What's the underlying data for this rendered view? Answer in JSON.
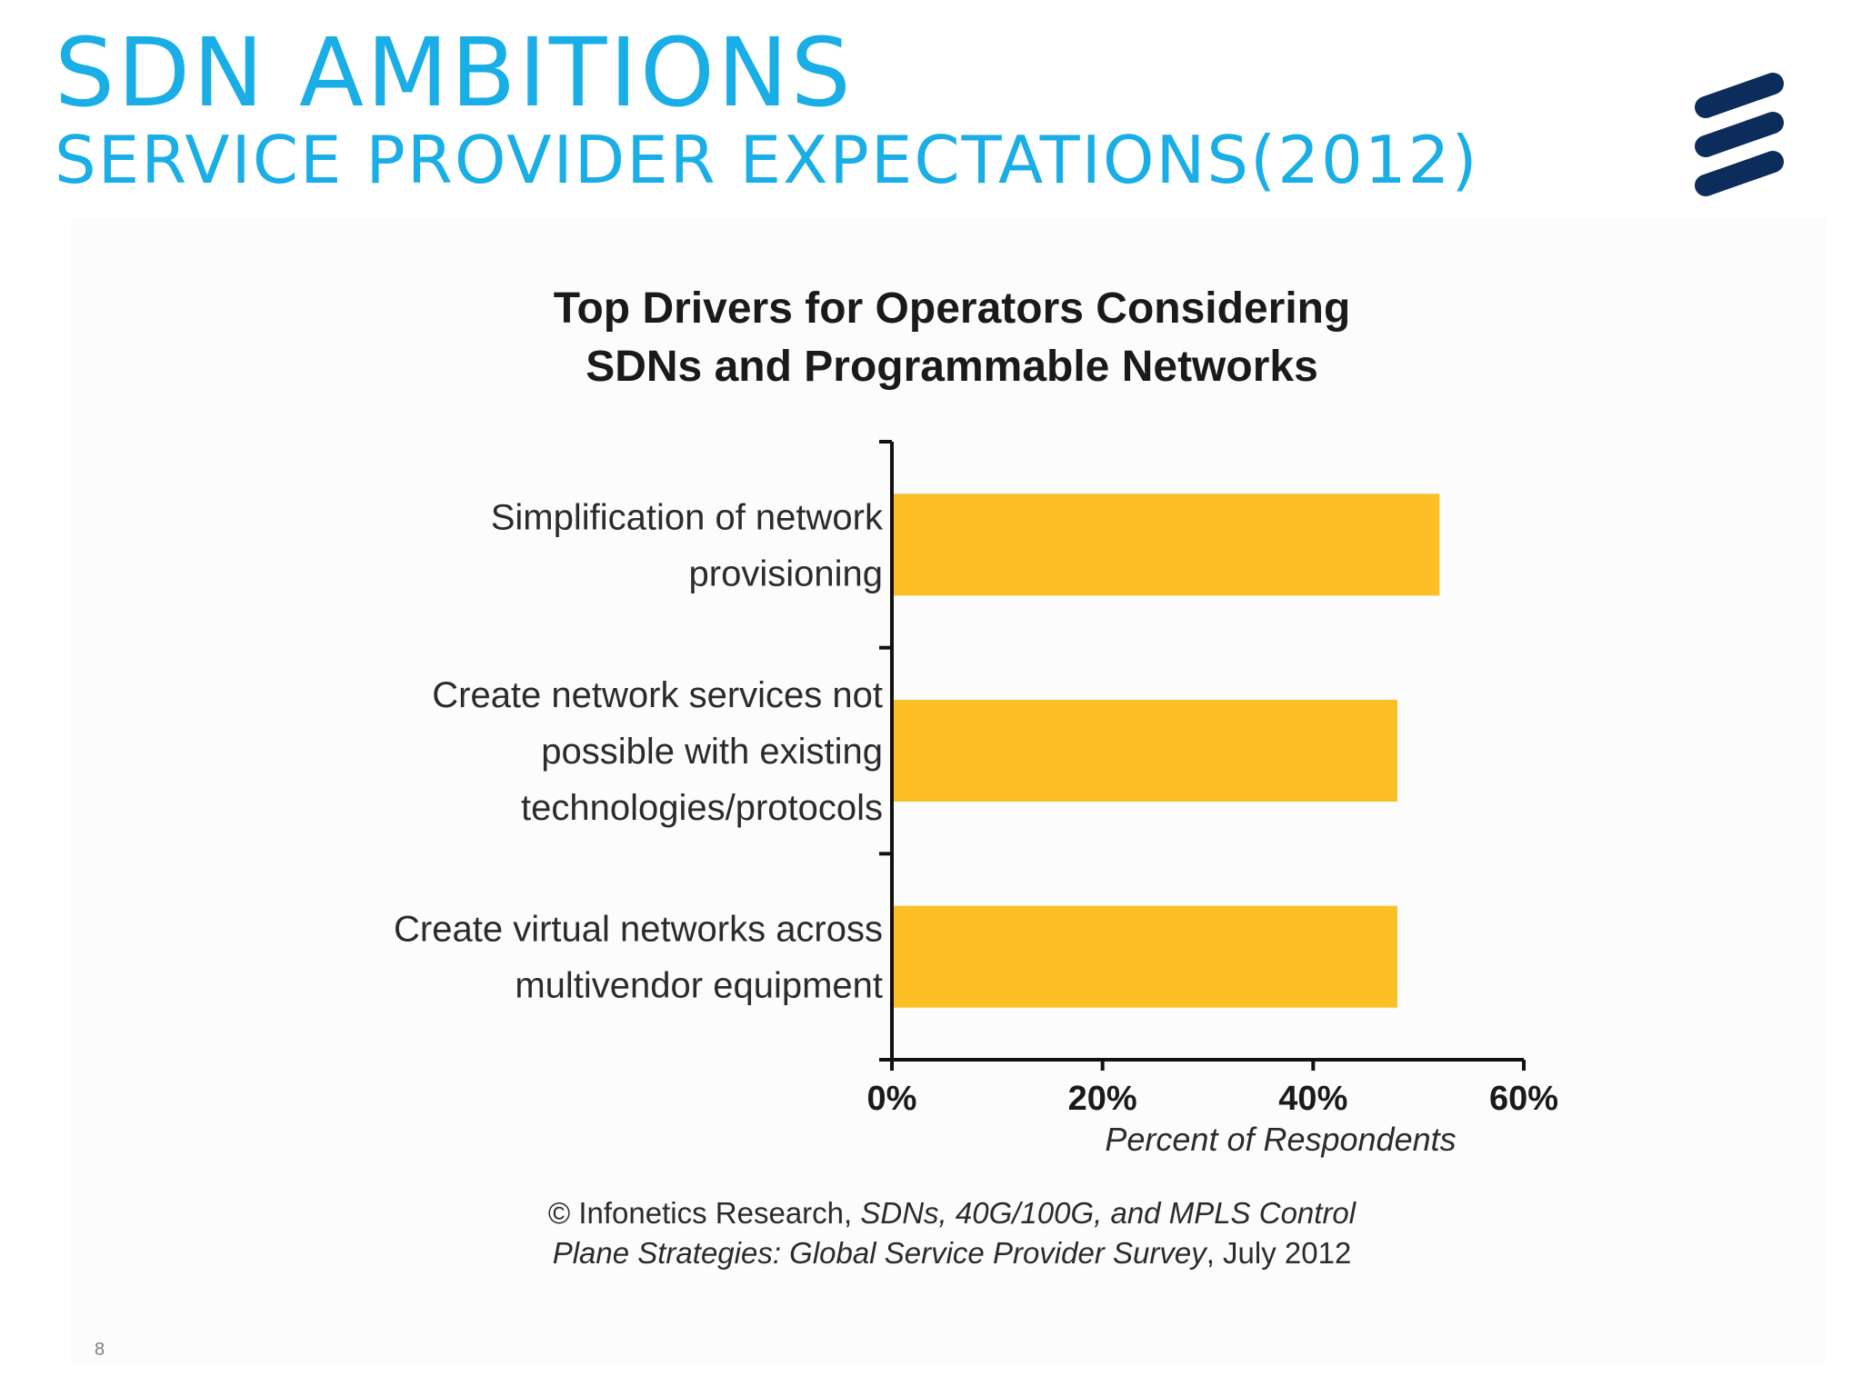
{
  "slide": {
    "title": "SDN AMBITIONS",
    "subtitle": "SERVICE PROVIDER EXPECTATIONS(2012)",
    "page_number": "8",
    "logo_icon": "ericsson-logo-icon",
    "title_color": "#1aaee6",
    "logo_color": "#0c2d5c"
  },
  "chart_data": {
    "type": "bar",
    "orientation": "horizontal",
    "title": "Top Drivers for Operators Considering SDNs and Programmable Networks",
    "title_lines": [
      "Top Drivers for Operators Considering",
      "SDNs and Programmable Networks"
    ],
    "categories": [
      "Simplification of network provisioning",
      "Create network services not possible with existing technologies/protocols",
      "Create virtual networks across multivendor equipment"
    ],
    "category_lines": [
      [
        "Simplification of network",
        "provisioning"
      ],
      [
        "Create network services not",
        "possible with existing",
        "technologies/protocols"
      ],
      [
        "Create virtual networks across",
        "multivendor equipment"
      ]
    ],
    "values": [
      52,
      48,
      48
    ],
    "value_unit": "%",
    "xlabel": "Percent of Respondents",
    "ylabel": "",
    "xlim": [
      0,
      60
    ],
    "x_ticks": [
      "0%",
      "20%",
      "40%",
      "60%"
    ],
    "x_tick_values": [
      0,
      20,
      40,
      60
    ],
    "grid": false,
    "bar_color": "#fcbf26",
    "source_lines": [
      [
        "© Infonetics Research, ",
        "SDNs, 40G/100G, and MPLS Control"
      ],
      [
        "Plane Strategies: Global Service Provider Survey",
        ", July 2012"
      ]
    ]
  }
}
